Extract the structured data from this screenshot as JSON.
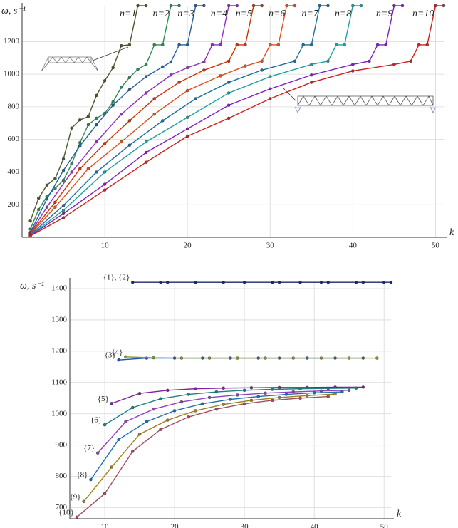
{
  "chart_data": [
    {
      "type": "line",
      "ylabel": "ω, s⁻¹",
      "xlabel": "k",
      "xlim": [
        0,
        51
      ],
      "ylim": [
        0,
        1420
      ],
      "xticks": [
        10,
        20,
        30,
        40,
        50
      ],
      "yticks": [
        200,
        400,
        600,
        800,
        1000,
        1200
      ],
      "grid": true,
      "series": [
        {
          "name": "n=1",
          "color": "#4a5a2a",
          "x": [
            1,
            2,
            3,
            4,
            5,
            6,
            7,
            8,
            9,
            10,
            11,
            12,
            13,
            14,
            15
          ],
          "values": [
            100,
            240,
            320,
            360,
            480,
            670,
            720,
            740,
            870,
            960,
            1040,
            1175,
            1180,
            1420,
            1420
          ]
        },
        {
          "name": "n=2",
          "color": "#2e8b57",
          "x": [
            1,
            2,
            3,
            4,
            5,
            6,
            7,
            8,
            9,
            10,
            11,
            12,
            13,
            14,
            15,
            16,
            17,
            18,
            19
          ],
          "values": [
            50,
            170,
            250,
            300,
            350,
            450,
            580,
            690,
            730,
            760,
            830,
            920,
            980,
            1030,
            1060,
            1180,
            1180,
            1420,
            1420
          ]
        },
        {
          "name": "n=3",
          "color": "#2060a0",
          "x": [
            1,
            3,
            5,
            7,
            9,
            11,
            13,
            15,
            17,
            18,
            19,
            20,
            21,
            22
          ],
          "values": [
            30,
            235,
            410,
            560,
            690,
            810,
            905,
            985,
            1045,
            1075,
            1180,
            1180,
            1420,
            1420
          ]
        },
        {
          "name": "n=4",
          "color": "#9030c0",
          "x": [
            1,
            3,
            6,
            9,
            12,
            15,
            18,
            20,
            22,
            23,
            24,
            25,
            26
          ],
          "values": [
            25,
            185,
            400,
            585,
            755,
            885,
            995,
            1040,
            1075,
            1180,
            1180,
            1420,
            1420
          ]
        },
        {
          "name": "n=5",
          "color": "#cc3300",
          "x": [
            1,
            4,
            7,
            10,
            13,
            16,
            19,
            22,
            25,
            26,
            27,
            28,
            29
          ],
          "values": [
            22,
            215,
            420,
            575,
            715,
            850,
            950,
            1025,
            1080,
            1180,
            1180,
            1420,
            1420
          ]
        },
        {
          "name": "n=6",
          "color": "#e05020",
          "x": [
            1,
            4,
            8,
            12,
            16,
            20,
            24,
            27,
            29,
            30,
            31,
            32,
            33
          ],
          "values": [
            18,
            185,
            420,
            585,
            755,
            900,
            990,
            1050,
            1080,
            1180,
            1180,
            1420,
            1420
          ]
        },
        {
          "name": "n=7",
          "color": "#1a6fa0",
          "x": [
            1,
            5,
            9,
            13,
            17,
            21,
            25,
            29,
            33,
            34,
            35,
            36,
            37
          ],
          "values": [
            15,
            195,
            400,
            565,
            715,
            850,
            950,
            1025,
            1080,
            1180,
            1180,
            1420,
            1420
          ]
        },
        {
          "name": "n=8",
          "color": "#20a0a0",
          "x": [
            1,
            5,
            10,
            15,
            20,
            25,
            30,
            35,
            37,
            38,
            39,
            40,
            41
          ],
          "values": [
            12,
            165,
            400,
            585,
            735,
            885,
            985,
            1060,
            1080,
            1180,
            1180,
            1420,
            1420
          ]
        },
        {
          "name": "n=9",
          "color": "#8020c0",
          "x": [
            1,
            5,
            10,
            15,
            20,
            25,
            30,
            35,
            40,
            42,
            43,
            44,
            45,
            46
          ],
          "values": [
            10,
            145,
            325,
            520,
            665,
            810,
            910,
            995,
            1060,
            1080,
            1180,
            1180,
            1420,
            1420
          ]
        },
        {
          "name": "n=10",
          "color": "#d02020",
          "x": [
            1,
            5,
            10,
            15,
            20,
            25,
            30,
            35,
            40,
            45,
            47,
            48,
            49,
            50,
            51
          ],
          "values": [
            8,
            120,
            290,
            460,
            620,
            730,
            850,
            950,
            1020,
            1060,
            1080,
            1180,
            1180,
            1420,
            1420
          ]
        }
      ]
    },
    {
      "type": "line",
      "ylabel": "ω, s⁻¹",
      "xlabel": "k",
      "xlim": [
        5,
        51
      ],
      "ylim": [
        665,
        1425
      ],
      "xticks": [
        10,
        20,
        30,
        40,
        50
      ],
      "yticks": [
        700,
        800,
        900,
        1000,
        1100,
        1200,
        1300,
        1400
      ],
      "grid": true,
      "series": [
        {
          "name": "{1}, {2}",
          "color": "#1a2a6a",
          "x": [
            14,
            18,
            19,
            23,
            27,
            30,
            34,
            35,
            38,
            41,
            42,
            46,
            47,
            50,
            51
          ],
          "values": [
            1420,
            1420,
            1420,
            1420,
            1420,
            1420,
            1420,
            1420,
            1420,
            1420,
            1420,
            1420,
            1420,
            1420,
            1420
          ]
        },
        {
          "name": "{3}",
          "color": "#2050a0",
          "x": [
            12,
            16,
            20,
            24,
            28,
            32,
            35,
            39,
            43,
            47
          ],
          "values": [
            1172,
            1178,
            1178,
            1178,
            1178,
            1178,
            1178,
            1178,
            1178,
            1178
          ]
        },
        {
          "name": "{4}",
          "color": "#8a9a20",
          "x": [
            13,
            17,
            21,
            25,
            29,
            33,
            37,
            41,
            45,
            49
          ],
          "values": [
            1182,
            1179,
            1178,
            1178,
            1178,
            1178,
            1178,
            1178,
            1178,
            1178
          ]
        },
        {
          "name": "{5}",
          "color": "#8020a0",
          "x": [
            11,
            15,
            19,
            23,
            27,
            31,
            35,
            39,
            43,
            47
          ],
          "values": [
            1033,
            1065,
            1075,
            1080,
            1082,
            1083,
            1084,
            1084,
            1085,
            1085
          ]
        },
        {
          "name": "{6}",
          "color": "#208080",
          "x": [
            10,
            14,
            18,
            22,
            26,
            30,
            34,
            38,
            42,
            46
          ],
          "values": [
            965,
            1020,
            1048,
            1062,
            1070,
            1075,
            1078,
            1080,
            1081,
            1082
          ]
        },
        {
          "name": "{7}",
          "color": "#9040c0",
          "x": [
            9,
            13,
            17,
            21,
            25,
            29,
            33,
            37,
            41,
            45
          ],
          "values": [
            875,
            975,
            1015,
            1038,
            1052,
            1060,
            1066,
            1070,
            1073,
            1075
          ]
        },
        {
          "name": "{8}",
          "color": "#2070b0",
          "x": [
            8,
            12,
            16,
            20,
            24,
            28,
            32,
            36,
            40,
            44
          ],
          "values": [
            790,
            918,
            975,
            1010,
            1032,
            1046,
            1055,
            1062,
            1067,
            1070
          ]
        },
        {
          "name": "{9}",
          "color": "#a08020",
          "x": [
            7,
            11,
            15,
            19,
            23,
            27,
            31,
            35,
            39,
            43
          ],
          "values": [
            720,
            830,
            935,
            980,
            1010,
            1030,
            1043,
            1052,
            1058,
            1063
          ]
        },
        {
          "name": "{10}",
          "color": "#a05060",
          "x": [
            6,
            10,
            14,
            18,
            22,
            26,
            30,
            34,
            38,
            42
          ],
          "values": [
            670,
            745,
            880,
            950,
            990,
            1015,
            1032,
            1043,
            1050,
            1055
          ]
        }
      ]
    }
  ]
}
